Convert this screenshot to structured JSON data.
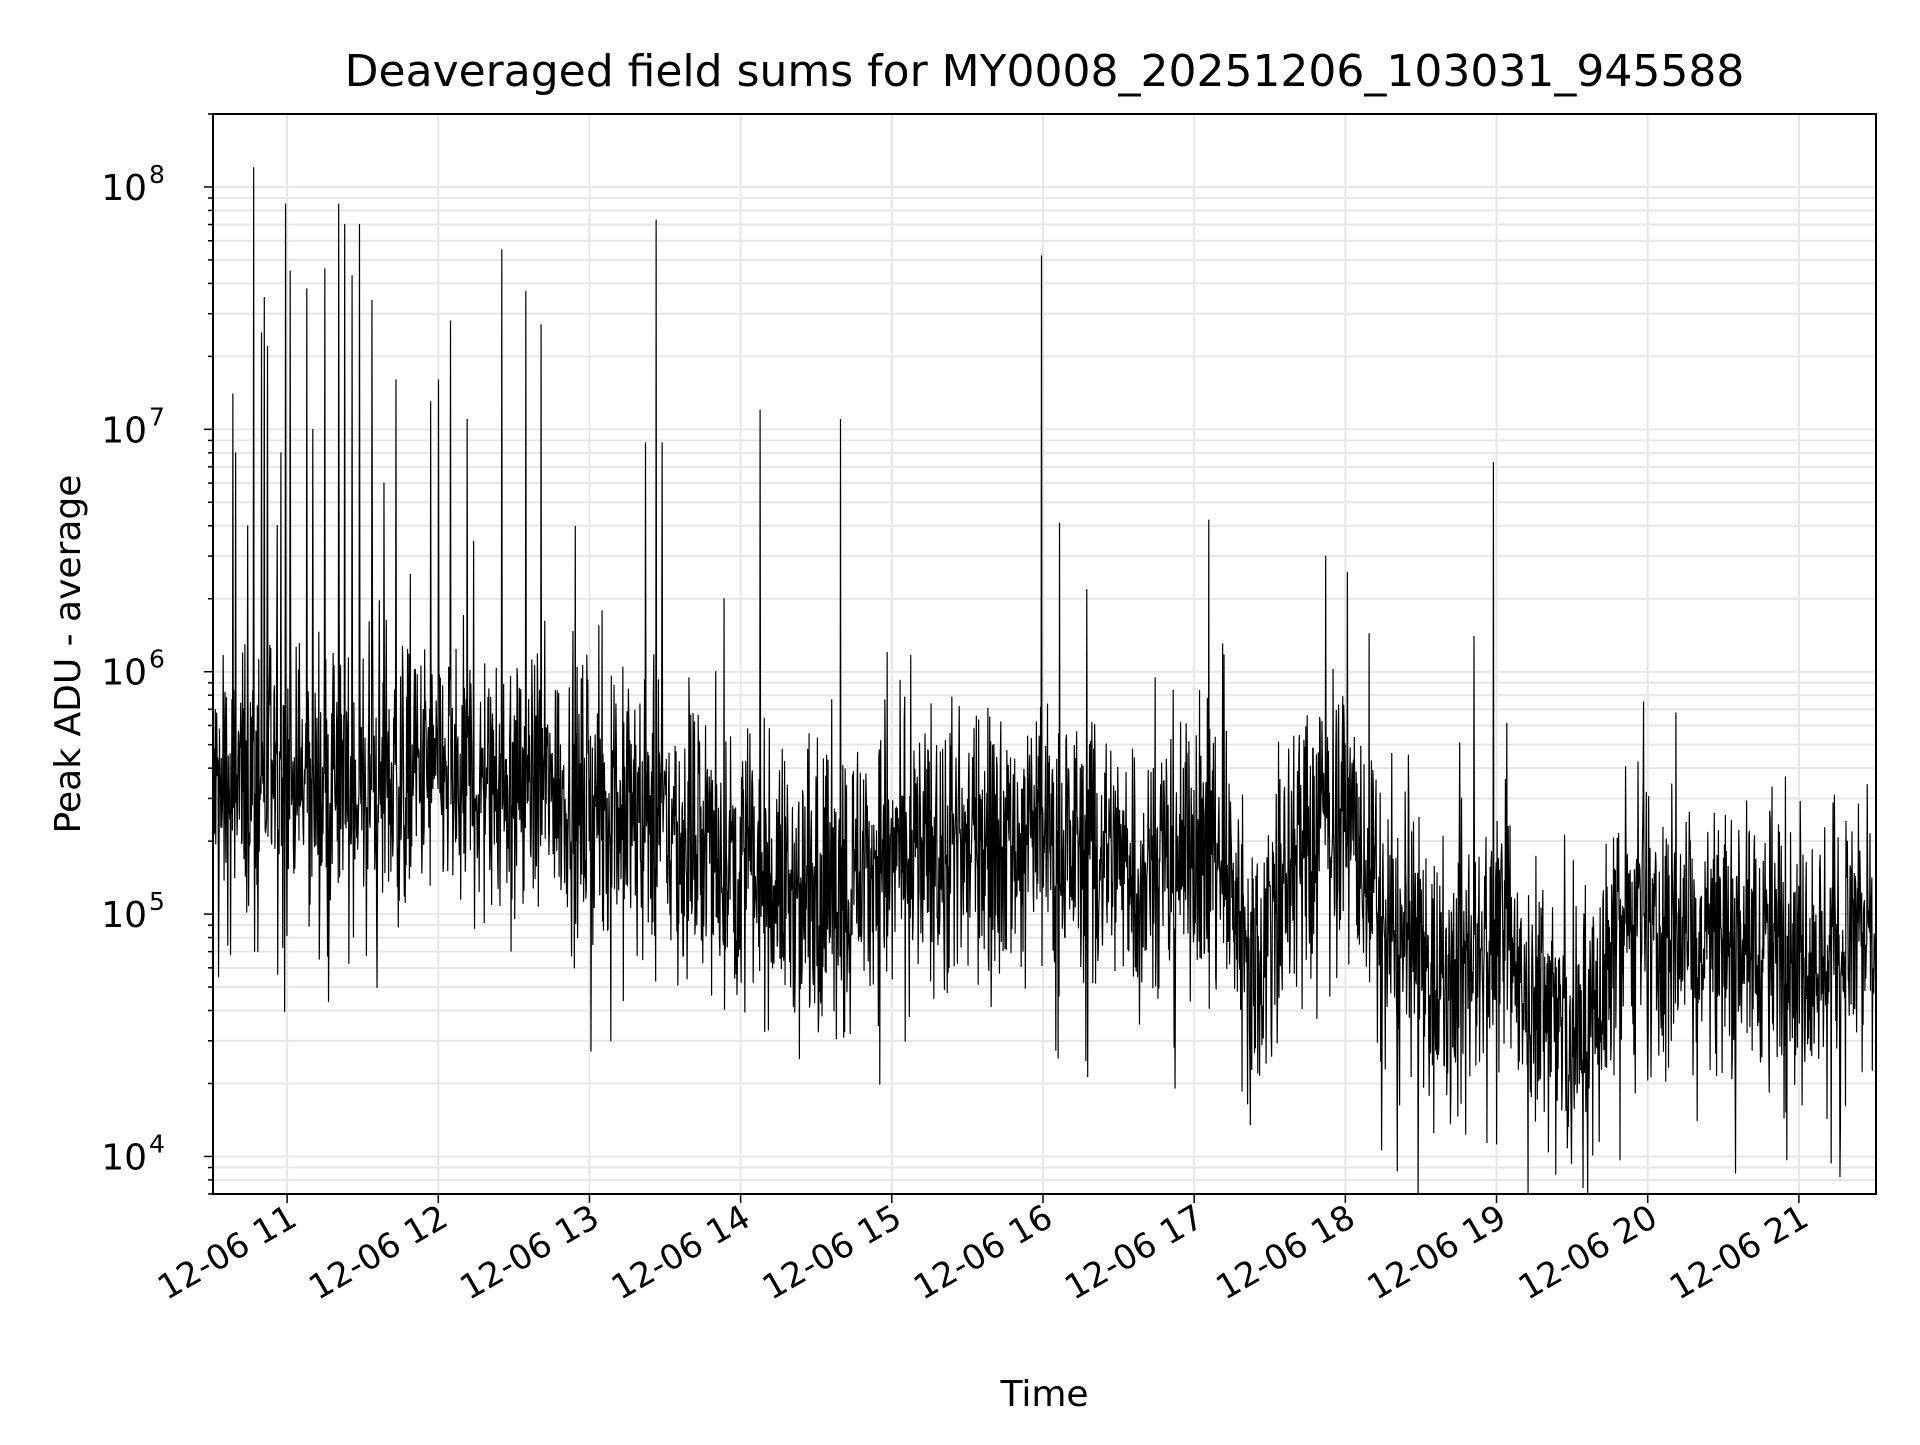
{
  "chart_data": {
    "type": "line",
    "title": "Deaveraged field sums for MY0008_20251206_103031_945588",
    "xlabel": "Time",
    "ylabel": "Peak ADU - average",
    "yscale": "log",
    "ylim": [
      7000,
      200000000
    ],
    "grid": true,
    "x_tick_labels": [
      "12-06 11",
      "12-06 12",
      "12-06 13",
      "12-06 14",
      "12-06 15",
      "12-06 16",
      "12-06 17",
      "12-06 18",
      "12-06 19",
      "12-06 20",
      "12-06 21"
    ],
    "x_tick_hours": [
      11,
      12,
      13,
      14,
      15,
      16,
      17,
      18,
      19,
      20,
      21
    ],
    "xlim_hours": [
      10.51,
      21.51
    ],
    "y_ticks": [
      {
        "value": 10000,
        "base": "10",
        "exp": "4"
      },
      {
        "value": 100000,
        "base": "10",
        "exp": "5"
      },
      {
        "value": 1000000,
        "base": "10",
        "exp": "6"
      },
      {
        "value": 10000000,
        "base": "10",
        "exp": "7"
      },
      {
        "value": 100000000,
        "base": "10",
        "exp": "8"
      }
    ],
    "series": [
      {
        "name": "deaveraged field sums",
        "color": "#000000",
        "baseline": [
          [
            10.51,
            300000
          ],
          [
            10.75,
            350000
          ],
          [
            11.0,
            350000
          ],
          [
            11.5,
            320000
          ],
          [
            12.0,
            380000
          ],
          [
            12.5,
            350000
          ],
          [
            12.8,
            330000
          ],
          [
            13.3,
            260000
          ],
          [
            13.6,
            220000
          ],
          [
            14.0,
            160000
          ],
          [
            14.4,
            120000
          ],
          [
            14.8,
            160000
          ],
          [
            15.3,
            180000
          ],
          [
            15.8,
            210000
          ],
          [
            16.3,
            190000
          ],
          [
            16.7,
            160000
          ],
          [
            17.1,
            200000
          ],
          [
            17.4,
            70000
          ],
          [
            17.8,
            250000
          ],
          [
            18.0,
            300000
          ],
          [
            18.3,
            70000
          ],
          [
            18.7,
            50000
          ],
          [
            19.0,
            90000
          ],
          [
            19.4,
            35000
          ],
          [
            19.6,
            28000
          ],
          [
            19.8,
            100000
          ],
          [
            19.95,
            80000
          ],
          [
            20.3,
            90000
          ],
          [
            20.8,
            80000
          ],
          [
            21.2,
            70000
          ],
          [
            21.51,
            90000
          ]
        ],
        "spikes": [
          [
            10.64,
            14000000
          ],
          [
            10.66,
            8000000
          ],
          [
            10.74,
            4000000
          ],
          [
            10.78,
            120000000
          ],
          [
            10.83,
            25000000
          ],
          [
            10.85,
            35000000
          ],
          [
            10.87,
            22000000
          ],
          [
            10.96,
            8000000
          ],
          [
            10.99,
            85000000
          ],
          [
            11.02,
            45000000
          ],
          [
            11.13,
            38000000
          ],
          [
            11.17,
            10000000
          ],
          [
            11.25,
            46000000
          ],
          [
            11.34,
            85000000
          ],
          [
            11.38,
            70000000
          ],
          [
            11.43,
            43000000
          ],
          [
            11.48,
            70000000
          ],
          [
            11.56,
            34000000
          ],
          [
            11.64,
            6000000
          ],
          [
            11.72,
            16000000
          ],
          [
            11.95,
            13000000
          ],
          [
            12.0,
            16000000
          ],
          [
            12.08,
            28000000
          ],
          [
            12.19,
            11000000
          ],
          [
            12.42,
            55000000
          ],
          [
            12.58,
            37000000
          ],
          [
            12.68,
            27000000
          ],
          [
            13.37,
            8800000
          ],
          [
            13.44,
            73000000
          ],
          [
            13.48,
            8800000
          ],
          [
            13.89,
            2000000
          ],
          [
            14.13,
            12000000
          ],
          [
            14.66,
            11000000
          ],
          [
            14.97,
            1200000
          ],
          [
            15.99,
            52000000
          ],
          [
            16.11,
            4100000
          ],
          [
            17.87,
            3000000
          ],
          [
            18.98,
            7300000
          ],
          [
            18.85,
            1400000
          ]
        ]
      }
    ]
  }
}
